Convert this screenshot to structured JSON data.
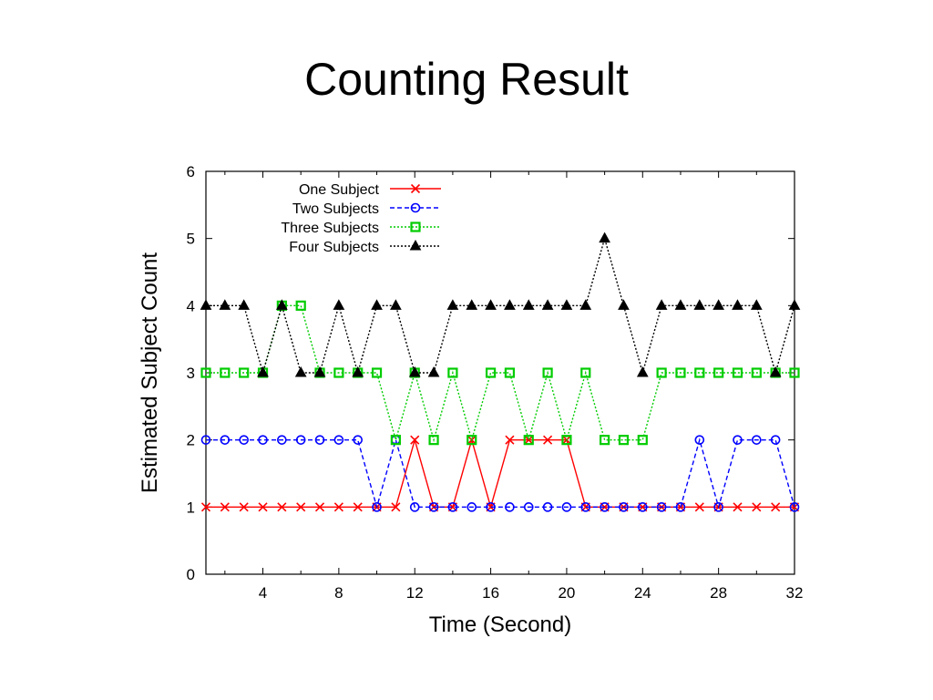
{
  "slide": {
    "title": "Counting Result"
  },
  "chart_data": {
    "type": "line",
    "title": "",
    "xlabel": "Time (Second)",
    "ylabel": "Estimated Subject Count",
    "xlim": [
      1,
      32
    ],
    "ylim": [
      0,
      6
    ],
    "xticks": [
      4,
      8,
      12,
      16,
      20,
      24,
      28,
      32
    ],
    "yticks": [
      0,
      1,
      2,
      3,
      4,
      5,
      6
    ],
    "grid": false,
    "legend_position": "top-left",
    "x": [
      1,
      2,
      3,
      4,
      5,
      6,
      7,
      8,
      9,
      10,
      11,
      12,
      13,
      14,
      15,
      16,
      17,
      18,
      19,
      20,
      21,
      22,
      23,
      24,
      25,
      26,
      27,
      28,
      29,
      30,
      31,
      32
    ],
    "series": [
      {
        "name": "One Subject",
        "color": "#ff0000",
        "marker": "cross",
        "dash": "solid",
        "values": [
          1,
          1,
          1,
          1,
          1,
          1,
          1,
          1,
          1,
          1,
          1,
          2,
          1,
          1,
          2,
          1,
          2,
          2,
          2,
          2,
          1,
          1,
          1,
          1,
          1,
          1,
          1,
          1,
          1,
          1,
          1,
          1
        ]
      },
      {
        "name": "Two Subjects",
        "color": "#0000ff",
        "marker": "circle",
        "dash": "dashed",
        "values": [
          2,
          2,
          2,
          2,
          2,
          2,
          2,
          2,
          2,
          1,
          2,
          1,
          1,
          1,
          1,
          1,
          1,
          1,
          1,
          1,
          1,
          1,
          1,
          1,
          1,
          1,
          2,
          1,
          2,
          2,
          2,
          1
        ]
      },
      {
        "name": "Three Subjects",
        "color": "#00cc00",
        "marker": "square",
        "dash": "dotted",
        "values": [
          3,
          3,
          3,
          3,
          4,
          4,
          3,
          3,
          3,
          3,
          2,
          3,
          2,
          3,
          2,
          3,
          3,
          2,
          3,
          2,
          3,
          2,
          2,
          2,
          3,
          3,
          3,
          3,
          3,
          3,
          3,
          3
        ]
      },
      {
        "name": "Four Subjects",
        "color": "#000000",
        "marker": "triangle",
        "dash": "dotted",
        "values": [
          4,
          4,
          4,
          3,
          4,
          3,
          3,
          4,
          3,
          4,
          4,
          3,
          3,
          4,
          4,
          4,
          4,
          4,
          4,
          4,
          4,
          5,
          4,
          3,
          4,
          4,
          4,
          4,
          4,
          4,
          3,
          4
        ]
      }
    ]
  }
}
